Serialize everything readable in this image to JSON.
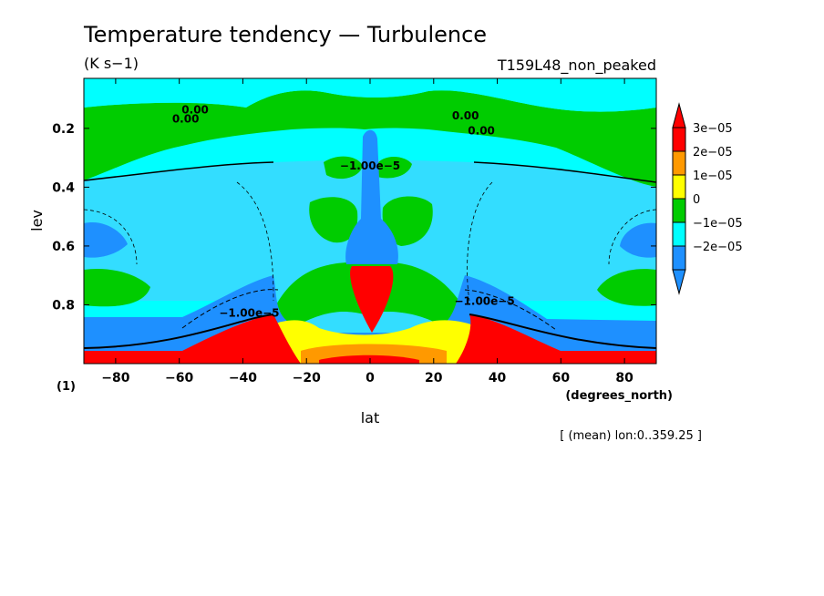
{
  "chart_data": {
    "type": "heatmap",
    "title": "Temperature tendency — Turbulence",
    "units": "(K s−1)",
    "experiment": "T159L48_non_peaked",
    "xlabel": "lat",
    "xunits": "(degrees_north)",
    "ylabel": "lev",
    "yunits": "(1)",
    "footnote": "[ (mean) lon:0..359.25 ]",
    "xlim": [
      -90,
      90
    ],
    "ylim": [
      1.0,
      0.03
    ],
    "x_ticks": [
      -80,
      -60,
      -40,
      -20,
      0,
      20,
      40,
      60,
      80
    ],
    "x_tick_labels": [
      "−80",
      "−60",
      "−40",
      "−20",
      "0",
      "20",
      "40",
      "60",
      "80"
    ],
    "y_ticks": [
      0.2,
      0.4,
      0.6,
      0.8
    ],
    "y_tick_labels": [
      "0.2",
      "0.4",
      "0.6",
      "0.8"
    ],
    "colorbar": {
      "levels": [
        {
          "label": "3e−05",
          "color": "#ff0000"
        },
        {
          "label": "2e−05",
          "color": "#ff9900"
        },
        {
          "label": "1e−05",
          "color": "#ffff00"
        },
        {
          "label": "0",
          "color": "#00cc00"
        },
        {
          "label": "−1e−05",
          "color": "#00ffff"
        },
        {
          "label": "−2e−05",
          "color": "#1e90ff"
        }
      ],
      "top_extension_color": "#ff0000",
      "bottom_extension_color": "#1e90ff"
    },
    "contour_labels": [
      {
        "text": "0.00",
        "lat": -55,
        "lev": 0.15
      },
      {
        "text": "0.00",
        "lat": -58,
        "lev": 0.18
      },
      {
        "text": "0.00",
        "lat": 30,
        "lev": 0.17
      },
      {
        "text": "0.00",
        "lat": 35,
        "lev": 0.22
      },
      {
        "text": "−1.00e−5",
        "lat": 0,
        "lev": 0.34
      },
      {
        "text": "−1.00e−5",
        "lat": -38,
        "lev": 0.84
      },
      {
        "text": "−1.00e−5",
        "lat": 36,
        "lev": 0.8
      }
    ],
    "regions_note": "negative (cyan) background; positive (green) band near lev 0.1–0.2 and mid-latitude lobes; strong positive (red) near surface at ±30° and equatorial column 0.65–0.9; negative (blue) bands near lev 0.85–0.95 and equatorial column 0.2–0.65"
  },
  "colors": {
    "red": "#ff0000",
    "orange": "#ff9900",
    "yellow": "#ffff00",
    "green": "#00cc00",
    "cyan": "#00ffff",
    "lightblue": "#33ddff",
    "blue": "#1e90ff"
  }
}
